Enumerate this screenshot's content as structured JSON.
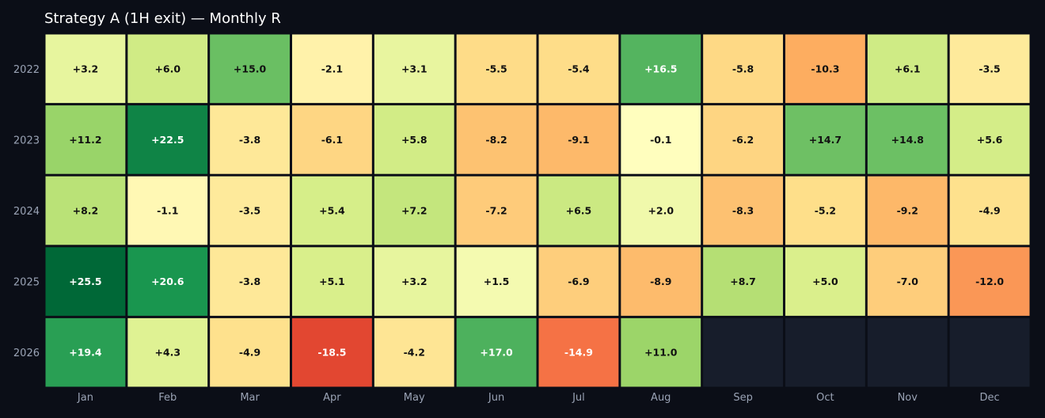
{
  "chart_data": {
    "type": "heatmap",
    "title": "Strategy A (1H exit) — Monthly R",
    "columns": [
      "Jan",
      "Feb",
      "Mar",
      "Apr",
      "May",
      "Jun",
      "Jul",
      "Aug",
      "Sep",
      "Oct",
      "Nov",
      "Dec"
    ],
    "rows": [
      "2022",
      "2023",
      "2024",
      "2025",
      "2026"
    ],
    "values": [
      [
        3.2,
        6.0,
        15.0,
        -2.1,
        3.1,
        -5.5,
        -5.4,
        16.5,
        -5.8,
        -10.3,
        6.1,
        -3.5
      ],
      [
        11.2,
        22.5,
        -3.8,
        -6.1,
        5.8,
        -8.2,
        -9.1,
        -0.1,
        -6.2,
        14.7,
        14.8,
        5.6
      ],
      [
        8.2,
        -1.1,
        -3.5,
        5.4,
        7.2,
        -7.2,
        6.5,
        2.0,
        -8.3,
        -5.2,
        -9.2,
        -4.9
      ],
      [
        25.5,
        20.6,
        -3.8,
        5.1,
        3.2,
        1.5,
        -6.9,
        -8.9,
        8.7,
        5.0,
        -7.0,
        -12.0
      ],
      [
        19.4,
        4.3,
        -4.9,
        -18.5,
        -4.2,
        17.0,
        -14.9,
        11.0,
        null,
        null,
        null,
        null
      ]
    ],
    "labels": [
      [
        "+3.2",
        "+6.0",
        "+15.0",
        "-2.1",
        "+3.1",
        "-5.5",
        "-5.4",
        "+16.5",
        "-5.8",
        "-10.3",
        "+6.1",
        "-3.5"
      ],
      [
        "+11.2",
        "+22.5",
        "-3.8",
        "-6.1",
        "+5.8",
        "-8.2",
        "-9.1",
        "-0.1",
        "-6.2",
        "+14.7",
        "+14.8",
        "+5.6"
      ],
      [
        "+8.2",
        "-1.1",
        "-3.5",
        "+5.4",
        "+7.2",
        "-7.2",
        "+6.5",
        "+2.0",
        "-8.3",
        "-5.2",
        "-9.2",
        "-4.9"
      ],
      [
        "+25.5",
        "+20.6",
        "-3.8",
        "+5.1",
        "+3.2",
        "+1.5",
        "-6.9",
        "-8.9",
        "+8.7",
        "+5.0",
        "-7.0",
        "-12.0"
      ],
      [
        "+19.4",
        "+4.3",
        "-4.9",
        "-18.5",
        "-4.2",
        "+17.0",
        "-14.9",
        "+11.0",
        "",
        "",
        "",
        ""
      ]
    ],
    "color_scale": "RdYlGn",
    "value_range": [
      -25.5,
      25.5
    ],
    "empty_cell_color": "#171d2b",
    "background_color": "#0b0e17",
    "grid_line_color": "#0b0e17",
    "tick_label_color": "#9aa3b5",
    "title_color": "#ffffff"
  }
}
